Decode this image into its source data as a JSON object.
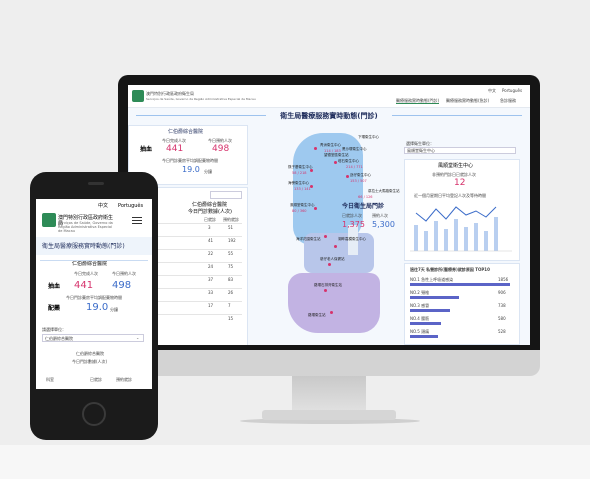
{
  "mon": {
    "org": "澳門特別行政區政府衛生局",
    "org_sub": "Serviços de Saúde, Governo da Região Administrativa Especial de Macau",
    "lang_zh": "中文",
    "lang_pt": "Português",
    "nav": [
      "醫療服務實時動態(門診)",
      "醫療服務實時動態(急診)",
      "急診服務"
    ],
    "title": "衛生局醫療服務實時動態(門診)",
    "left": {
      "center": "仁伯爵綜合醫院",
      "col1": "今日完成人次",
      "col2": "今日預約人次",
      "row_label": "抽血",
      "v1": "441",
      "v2": "498",
      "wait_label": "今日門診藥房平均調配藥物時間",
      "wait_val": "19.0",
      "wait_unit": "分鐘",
      "table_title": "仁伯爵綜合醫院",
      "table_sub": "今日門診數據(人次)",
      "h1": "已就診",
      "h2": "預約就診",
      "rows": [
        [
          "3",
          "51"
        ],
        [
          "41",
          "192"
        ],
        [
          "22",
          "55"
        ],
        [
          "24",
          "75"
        ],
        [
          "37",
          "83"
        ],
        [
          "33",
          "26"
        ],
        [
          "17",
          "7"
        ],
        [
          "",
          "15"
        ]
      ]
    },
    "map": {
      "labels": [
        "青洲衛生中心",
        "筷子基衛生中心",
        "塔石衛生中心",
        "海傍衛生中心",
        "氹仔衛生中心",
        "慕拉士大馬路衛生站",
        "風順堂衛生中心",
        "海洋花園衛生站",
        "湖畔嘉模衛生中心",
        "黑沙環衛生中心",
        "望德堂區衛生站",
        "路環衛生站",
        "路環石排灣衛生站",
        "慈仔老人保健站",
        "下環衛生中心"
      ],
      "vals": [
        "114 / 183",
        "58 / 218",
        "214 / 771",
        "133 / 141",
        "153 / 507",
        "80 / 360",
        "66 / 126"
      ],
      "today_title": "今日衛生局門診",
      "today_c1": "已就診人次",
      "today_c2": "預約人次",
      "today_v1": "1,375",
      "today_v2": "5,300"
    },
    "right": {
      "select_label": "選擇衛生單位：",
      "select_val": "風順堂衛生中心",
      "center": "風順堂衛生中心",
      "appt_label": "非預約門診日已就診人次",
      "appt_val": "12",
      "chart_title": "近一個月星期日平均登記人次及等待時間",
      "top_title": "過往7天 私營診所(醫療券)就診原因 TOP10",
      "top": [
        [
          "NO.1 急性上呼吸道感染",
          "1856"
        ],
        [
          "NO.2 頸椎",
          "906"
        ],
        [
          "NO.3 感冒",
          "738"
        ],
        [
          "NO.4 腰筋",
          "580"
        ],
        [
          "NO.5 頭痛",
          "528"
        ]
      ]
    }
  },
  "phone": {
    "lang_zh": "中文",
    "lang_pt": "Português",
    "org": "澳門特別行政區政府衛生局",
    "org_sub": "Serviços de Saúde, Governo da Região Administrativa Especial de Macau",
    "title": "衛生局醫療服務實時動態(門診)",
    "center": "仁伯爵綜合醫院",
    "col1": "今日完成人次",
    "col2": "今日預約人次",
    "row1": "抽血",
    "v1": "441",
    "v2": "498",
    "wait_label": "今日門診藥房平均調配藥物時間",
    "row2": "配藥",
    "wait_val": "19.0",
    "wait_unit": "分鐘",
    "select_label": "請選擇單位：",
    "select_val": "仁伯爵綜合醫院",
    "table_title": "仁伯爵綜合醫院",
    "table_sub": "今日門診數據(人次)",
    "h0": "科室",
    "h1": "已就診",
    "h2": "預約就診"
  }
}
